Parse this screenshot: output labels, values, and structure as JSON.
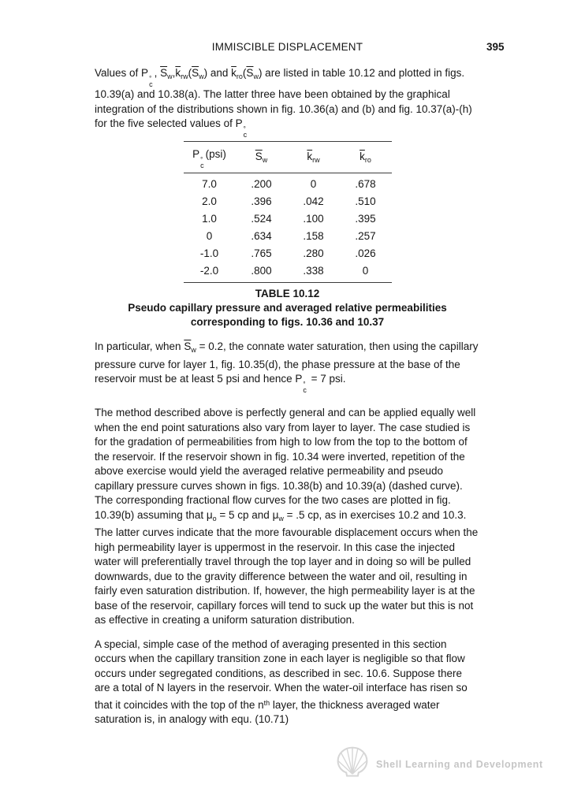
{
  "header": {
    "title": "IMMISCIBLE DISPLACEMENT",
    "page_number": "395"
  },
  "paragraphs": {
    "p1": [
      {
        "t": "Values of "
      },
      {
        "t": "P"
      },
      {
        "s": "stack",
        "top": "°",
        "bot": "c"
      },
      {
        "t": ", "
      },
      {
        "t": "S",
        "s": "over"
      },
      {
        "t": "w",
        "s": "sub"
      },
      {
        "t": ","
      },
      {
        "t": "k",
        "s": "over"
      },
      {
        "t": "rw",
        "s": "sub"
      },
      {
        "t": "("
      },
      {
        "t": "S",
        "s": "over"
      },
      {
        "t": "w",
        "s": "sub"
      },
      {
        "t": ") and "
      },
      {
        "t": "k",
        "s": "over"
      },
      {
        "t": "ro",
        "s": "sub"
      },
      {
        "t": "("
      },
      {
        "t": "S",
        "s": "over"
      },
      {
        "t": "w",
        "s": "sub"
      },
      {
        "t": ") are listed in table 10.12 and plotted in figs. 10.39(a) and 10.38(a). The latter three have been obtained by the graphical integration of the distributions shown in fig. 10.36(a) and (b) and fig. 10.37(a)-(h) for the five selected values of "
      },
      {
        "t": "P"
      },
      {
        "s": "stack",
        "top": "°",
        "bot": "c"
      }
    ],
    "p2": [
      {
        "t": "In particular, when  "
      },
      {
        "t": "S",
        "s": "over"
      },
      {
        "t": "w",
        "s": "sub"
      },
      {
        "t": " = 0.2, the connate water saturation, then using the capillary pressure curve for layer 1, fig. 10.35(d), the phase pressure at the base of the reservoir must be at least 5 psi and hence "
      },
      {
        "t": "P"
      },
      {
        "s": "stack",
        "top": "°",
        "bot": "c"
      },
      {
        "t": " = 7 psi."
      }
    ],
    "p3": [
      {
        "t": "The method described above is perfectly general and can be applied equally well when the end point saturations also vary from layer to layer. The case studied is for the gradation of permeabilities from high to low from the top to the bottom of the reservoir. If the reservoir shown in fig. 10.34 were inverted, repetition of the above exercise would yield the averaged relative permeability and pseudo capillary pressure curves shown in figs. 10.38(b) and 10.39(a) (dashed curve). The corresponding fractional flow curves for the two cases are plotted in fig. 10.39(b) assuming that "
      },
      {
        "t": "μ"
      },
      {
        "t": "o",
        "s": "sub"
      },
      {
        "t": " = 5 cp and "
      },
      {
        "t": "μ"
      },
      {
        "t": "w",
        "s": "sub"
      },
      {
        "t": " = .5 cp, as in exercises 10.2 and 10.3. The latter curves indicate that the more favourable displacement occurs when the high permeability layer is uppermost in the reservoir. In this case the injected water will preferentially travel through the top layer and in doing so will be pulled downwards, due to the gravity difference between the water and oil, resulting in fairly even saturation distribution. If, however, the high permeability layer is at the base of the reservoir, capillary forces will tend to suck up the water but this is not as effective in creating a uniform saturation distribution."
      }
    ],
    "p4": [
      {
        "t": "A special, simple case of the method of averaging presented in this section occurs when the capillary transition zone in each layer is negligible so that flow occurs under segregated conditions, as described in sec. 10.6. Suppose there are a total of N layers in the reservoir. When the water-oil interface has risen so that it coincides with the top of the n"
      },
      {
        "t": "th",
        "s": "sup"
      },
      {
        "t": " layer, the thickness averaged water saturation is, in analogy with equ. (10.71)"
      }
    ]
  },
  "table": {
    "headers": [
      [
        {
          "t": "P"
        },
        {
          "s": "stack",
          "top": "°",
          "bot": "c"
        },
        {
          "t": "(psi)"
        }
      ],
      [
        {
          "t": "S",
          "s": "over"
        },
        {
          "t": "w",
          "s": "sub"
        }
      ],
      [
        {
          "t": "k",
          "s": "over"
        },
        {
          "t": "rw",
          "s": "sub"
        }
      ],
      [
        {
          "t": "k",
          "s": "over"
        },
        {
          "t": "ro",
          "s": "sub"
        }
      ]
    ],
    "rows": [
      [
        "7.0",
        ".200",
        "0",
        ".678"
      ],
      [
        "2.0",
        ".396",
        ".042",
        ".510"
      ],
      [
        "1.0",
        ".524",
        ".100",
        ".395"
      ],
      [
        "0",
        ".634",
        ".158",
        ".257"
      ],
      [
        "-1.0",
        ".765",
        ".280",
        ".026"
      ],
      [
        "-2.0",
        ".800",
        ".338",
        "0"
      ]
    ],
    "caption_title": "TABLE 10.12",
    "caption_line1": "Pseudo capillary pressure and averaged relative permeabilities",
    "caption_line2": "corresponding to figs. 10.36 and 10.37"
  },
  "footer": {
    "text": "Shell Learning and Development",
    "text_color": "#c6c6c6",
    "logo_color": "#d6d6d6"
  }
}
